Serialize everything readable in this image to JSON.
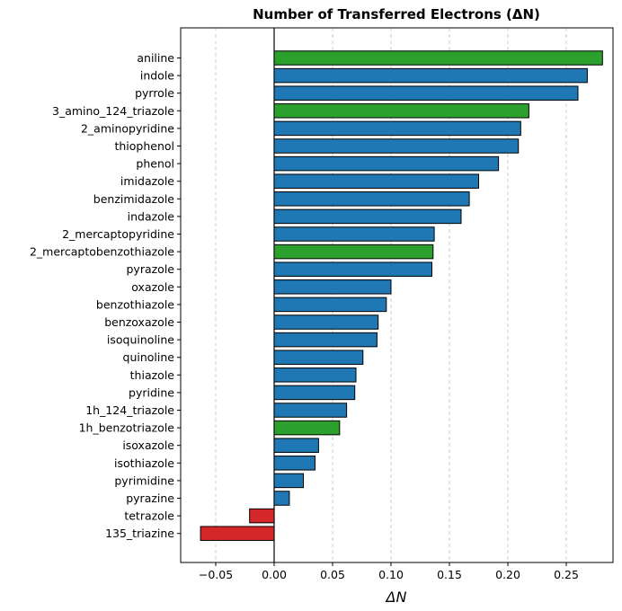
{
  "chart_data": {
    "type": "bar",
    "orientation": "horizontal",
    "title": "Number of Transferred Electrons (ΔN)",
    "xlabel": "ΔN",
    "ylabel": "",
    "xlim": [
      -0.08,
      0.29
    ],
    "xticks": [
      -0.05,
      0.0,
      0.05,
      0.1,
      0.15,
      0.2,
      0.25
    ],
    "xtick_labels": [
      "−0.05",
      "0.00",
      "0.05",
      "0.10",
      "0.15",
      "0.20",
      "0.25"
    ],
    "grid": "vertical dashed",
    "colors": {
      "default": "#1f77b4",
      "highlight": "#2ca02c",
      "negative": "#d62728",
      "edge": "#000000"
    },
    "categories": [
      "aniline",
      "indole",
      "pyrrole",
      "3_amino_124_triazole",
      "2_aminopyridine",
      "thiophenol",
      "phenol",
      "imidazole",
      "benzimidazole",
      "indazole",
      "2_mercaptopyridine",
      "2_mercaptobenzothiazole",
      "pyrazole",
      "oxazole",
      "benzothiazole",
      "benzoxazole",
      "isoquinoline",
      "quinoline",
      "thiazole",
      "pyridine",
      "1h_124_triazole",
      "1h_benzotriazole",
      "isoxazole",
      "isothiazole",
      "pyrimidine",
      "pyrazine",
      "tetrazole",
      "135_triazine"
    ],
    "values": [
      0.281,
      0.268,
      0.26,
      0.218,
      0.211,
      0.209,
      0.192,
      0.175,
      0.167,
      0.16,
      0.137,
      0.136,
      0.135,
      0.1,
      0.096,
      0.089,
      0.088,
      0.076,
      0.07,
      0.069,
      0.062,
      0.056,
      0.038,
      0.035,
      0.025,
      0.013,
      -0.021,
      -0.063
    ],
    "bar_colors": [
      "#2ca02c",
      "#1f77b4",
      "#1f77b4",
      "#2ca02c",
      "#1f77b4",
      "#1f77b4",
      "#1f77b4",
      "#1f77b4",
      "#1f77b4",
      "#1f77b4",
      "#1f77b4",
      "#2ca02c",
      "#1f77b4",
      "#1f77b4",
      "#1f77b4",
      "#1f77b4",
      "#1f77b4",
      "#1f77b4",
      "#1f77b4",
      "#1f77b4",
      "#1f77b4",
      "#2ca02c",
      "#1f77b4",
      "#1f77b4",
      "#1f77b4",
      "#1f77b4",
      "#d62728",
      "#d62728"
    ]
  }
}
